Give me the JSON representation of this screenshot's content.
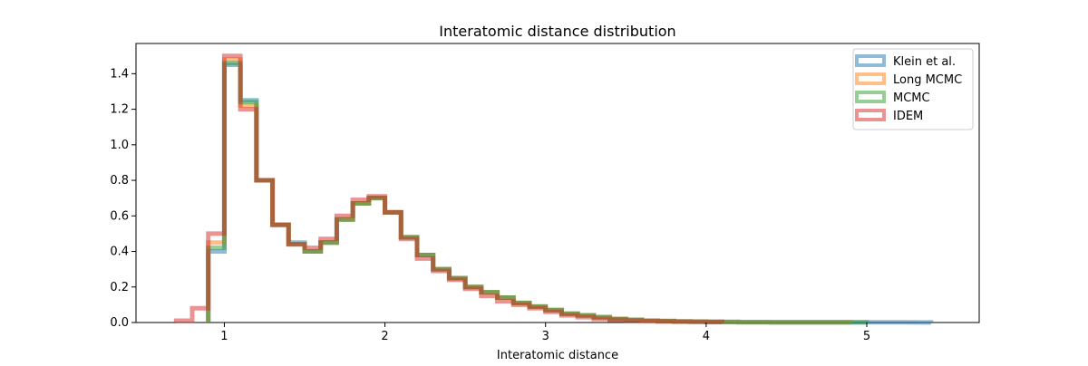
{
  "chart_data": {
    "type": "histogram",
    "title": "Interatomic distance distribution",
    "xlabel": "Interatomic distance",
    "ylabel": "",
    "xlim": [
      0.45,
      5.7
    ],
    "ylim": [
      0.0,
      1.57
    ],
    "xticks": [
      1,
      2,
      3,
      4,
      5
    ],
    "yticks": [
      0.0,
      0.2,
      0.4,
      0.6,
      0.8,
      1.0,
      1.2,
      1.4
    ],
    "ytick_labels": [
      "0.0",
      "0.2",
      "0.4",
      "0.6",
      "0.8",
      "1.0",
      "1.2",
      "1.4"
    ],
    "grid": false,
    "legend_position": "top-right",
    "histtype": "step",
    "series": [
      {
        "name": "Klein et al.",
        "color": "#1f77b4",
        "bin_start": 0.9,
        "bin_width": 0.1,
        "values": [
          0.4,
          1.45,
          1.25,
          0.8,
          0.55,
          0.45,
          0.4,
          0.45,
          0.58,
          0.67,
          0.7,
          0.62,
          0.48,
          0.38,
          0.3,
          0.25,
          0.2,
          0.17,
          0.14,
          0.11,
          0.09,
          0.07,
          0.05,
          0.04,
          0.03,
          0.02,
          0.015,
          0.01,
          0.008,
          0.006,
          0.005,
          0.004,
          0.003,
          0.002,
          0.002,
          0.001,
          0.001,
          0.001,
          0.001,
          0.001,
          0.001,
          0.001,
          0.001,
          0.001,
          0.0005
        ]
      },
      {
        "name": "Long MCMC",
        "color": "#ff7f0e",
        "bin_start": 0.9,
        "bin_width": 0.1,
        "values": [
          0.45,
          1.48,
          1.22,
          0.8,
          0.55,
          0.44,
          0.4,
          0.45,
          0.58,
          0.67,
          0.7,
          0.62,
          0.48,
          0.38,
          0.3,
          0.25,
          0.2,
          0.17,
          0.14,
          0.11,
          0.09,
          0.07,
          0.05,
          0.04,
          0.03,
          0.02,
          0.015,
          0.01,
          0.008,
          0.006,
          0.005,
          0.004,
          0.003,
          0.002,
          0.002,
          0.001,
          0.001,
          0.001,
          0.001,
          0.001
        ]
      },
      {
        "name": "MCMC",
        "color": "#2ca02c",
        "bin_start": 0.9,
        "bin_width": 0.1,
        "values": [
          0.42,
          1.46,
          1.24,
          0.8,
          0.55,
          0.44,
          0.4,
          0.45,
          0.58,
          0.67,
          0.7,
          0.62,
          0.48,
          0.38,
          0.3,
          0.25,
          0.2,
          0.17,
          0.14,
          0.11,
          0.09,
          0.07,
          0.05,
          0.04,
          0.03,
          0.02,
          0.015,
          0.01,
          0.008,
          0.006,
          0.005,
          0.004,
          0.003,
          0.002,
          0.002,
          0.001,
          0.001,
          0.001,
          0.001,
          0.001,
          0.001
        ]
      },
      {
        "name": "IDEM",
        "color": "#d62728",
        "bin_start": 0.7,
        "bin_width": 0.1,
        "values": [
          0.01,
          0.08,
          0.5,
          1.5,
          1.2,
          0.8,
          0.55,
          0.44,
          0.42,
          0.47,
          0.6,
          0.69,
          0.71,
          0.62,
          0.47,
          0.36,
          0.29,
          0.24,
          0.19,
          0.15,
          0.12,
          0.1,
          0.08,
          0.06,
          0.04,
          0.03,
          0.02,
          0.015,
          0.01,
          0.008,
          0.006,
          0.005,
          0.004,
          0.003
        ]
      }
    ]
  }
}
